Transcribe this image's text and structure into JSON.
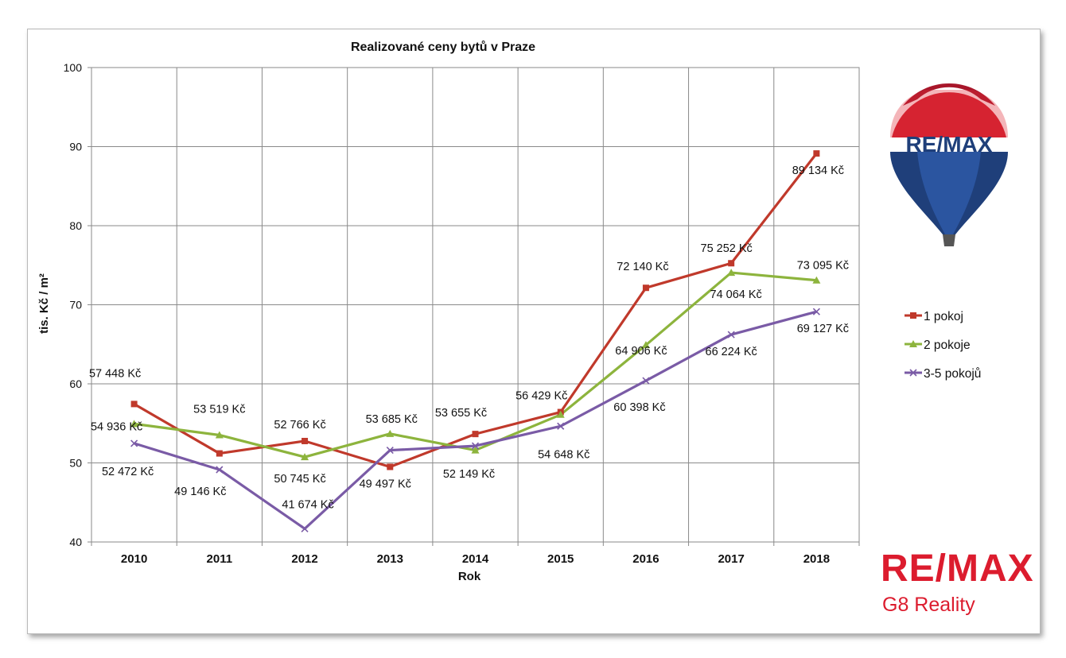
{
  "chart_data": {
    "type": "line",
    "title": "Realizované ceny bytů v Praze",
    "xlabel": "Rok",
    "ylabel": "tis. Kč / m²",
    "ylim": [
      40,
      100
    ],
    "yticks": [
      "40",
      "50",
      "60",
      "70",
      "80",
      "90",
      "100"
    ],
    "categories": [
      "2010",
      "2011",
      "2012",
      "2013",
      "2014",
      "2015",
      "2016",
      "2017",
      "2018"
    ],
    "grid": true,
    "legend_position": "right",
    "series": [
      {
        "name": "1 pokoj",
        "color": "#c0392b",
        "marker": "square",
        "values": [
          57.448,
          51.2,
          52.766,
          49.497,
          53.655,
          56.429,
          72.14,
          75.252,
          89.134
        ],
        "labels": [
          "57 448 Kč",
          "",
          "52 766 Kč",
          "49 497 Kč",
          "53 655 Kč",
          "56 429 Kč",
          "72 140 Kč",
          "75 252 Kč",
          "89 134 Kč"
        ]
      },
      {
        "name": "2 pokoje",
        "color": "#8db43d",
        "marker": "triangle",
        "values": [
          54.936,
          53.519,
          50.745,
          53.685,
          51.6,
          56.1,
          64.906,
          74.064,
          73.095
        ],
        "labels": [
          "54 936 Kč",
          "53 519 Kč",
          "50 745 Kč",
          "53 685 Kč",
          "",
          "",
          "64 906 Kč",
          "74 064 Kč",
          "73 095 Kč"
        ]
      },
      {
        "name": "3-5 pokojů",
        "color": "#7a5ba6",
        "marker": "x",
        "values": [
          52.472,
          49.146,
          41.674,
          51.6,
          52.149,
          54.648,
          60.398,
          66.224,
          69.127
        ],
        "labels": [
          "52 472 Kč",
          "49 146 Kč",
          "41 674 Kč",
          "",
          "52 149 Kč",
          "54 648 Kč",
          "60 398 Kč",
          "66 224 Kč",
          "69 127 Kč"
        ]
      }
    ]
  },
  "logos": {
    "balloon_text": "RE/MAX",
    "brand_text": "RE/MAX",
    "brand_subtext": "G8 Reality",
    "brand_color": "#dc1c2e",
    "balloon_blue": "#1f3f7a"
  }
}
